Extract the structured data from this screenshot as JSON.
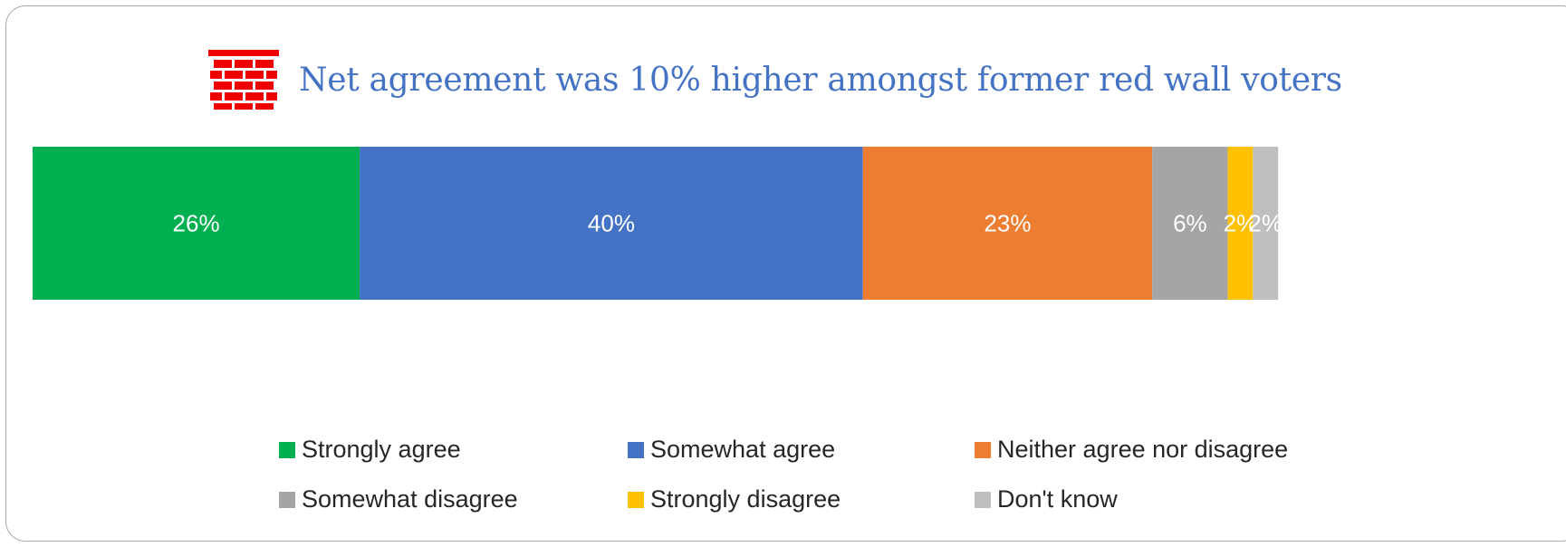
{
  "chart_data": {
    "type": "bar",
    "orientation": "horizontal",
    "stacked": true,
    "title": "Net agreement was 10% higher amongst former red wall voters",
    "title_icon": "brick-wall-icon",
    "categories": [
      ""
    ],
    "series": [
      {
        "name": "Strongly agree",
        "values": [
          26
        ],
        "label": "26%",
        "color": "#00b050"
      },
      {
        "name": "Somewhat agree",
        "values": [
          40
        ],
        "label": "40%",
        "color": "#4472c4"
      },
      {
        "name": "Neither agree nor disagree",
        "values": [
          23
        ],
        "label": "23%",
        "color": "#ed7d31"
      },
      {
        "name": "Somewhat disagree",
        "values": [
          6
        ],
        "label": "6%",
        "color": "#a5a5a5"
      },
      {
        "name": "Strongly disagree",
        "values": [
          2
        ],
        "label": "2%",
        "color": "#ffc000"
      },
      {
        "name": "Don't know",
        "values": [
          2
        ],
        "label": "2%",
        "color": "#bfbfbf"
      }
    ],
    "xlim": [
      0,
      100
    ],
    "data_label_color": "#ffffff",
    "grid": false,
    "legend_position": "bottom"
  }
}
